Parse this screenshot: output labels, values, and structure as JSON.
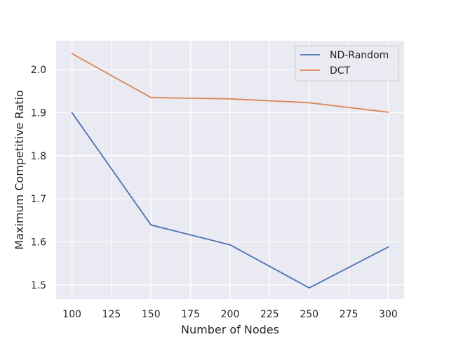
{
  "chart_data": {
    "type": "line",
    "xlabel": "Number of Nodes",
    "ylabel": "Maximum Competitive Ratio",
    "x": [
      100,
      150,
      200,
      250,
      300
    ],
    "xlim": [
      90,
      310
    ],
    "ylim": [
      1.467,
      2.067
    ],
    "xticks": [
      100,
      125,
      150,
      175,
      200,
      225,
      250,
      275,
      300
    ],
    "xtick_labels": [
      "100",
      "125",
      "150",
      "175",
      "200",
      "225",
      "250",
      "275",
      "300"
    ],
    "yticks": [
      1.5,
      1.6,
      1.7,
      1.8,
      1.9,
      2.0
    ],
    "ytick_labels": [
      "1.5",
      "1.6",
      "1.7",
      "1.8",
      "1.9",
      "2.0"
    ],
    "grid": true,
    "legend_position": "top-right",
    "series": [
      {
        "name": "ND-Random",
        "color": "#4c72b0",
        "values": [
          1.9,
          1.639,
          1.593,
          1.493,
          1.588
        ]
      },
      {
        "name": "DCT",
        "color": "#dd8452",
        "values": [
          2.037,
          1.935,
          1.932,
          1.923,
          1.901
        ]
      }
    ]
  }
}
